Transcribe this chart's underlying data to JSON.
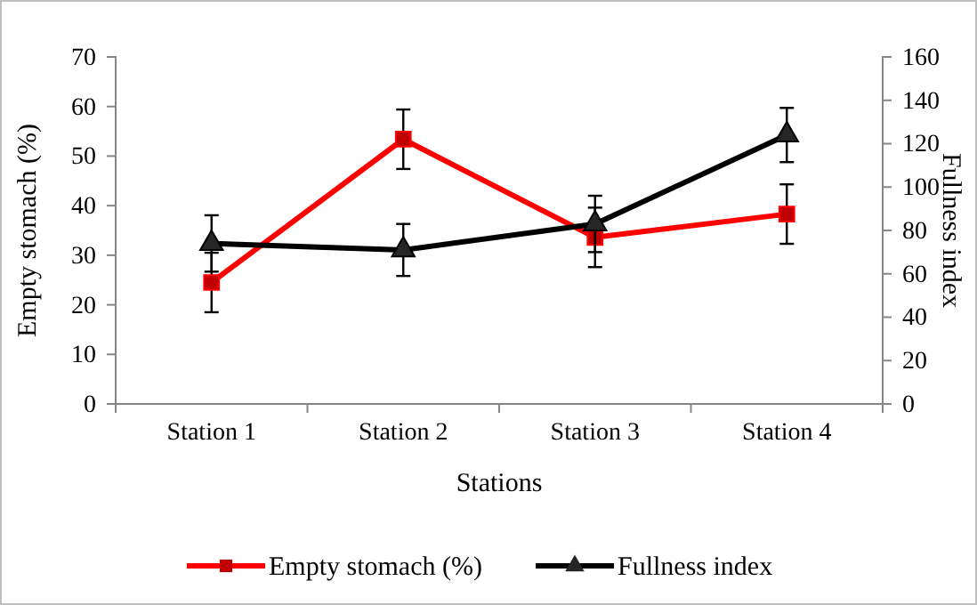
{
  "chart_data": {
    "type": "line",
    "xlabel": "Stations",
    "ylabel": "Empty stomach (%)",
    "y2label": "Fullness index",
    "categories": [
      "Station 1",
      "Station 2",
      "Station 3",
      "Station 4"
    ],
    "series": [
      {
        "name": "Empty stomach (%)",
        "color": "#ff0000",
        "values": [
          24.5,
          53.4,
          33.6,
          38.3
        ],
        "errors": [
          6,
          6,
          6,
          6
        ],
        "marker": "square"
      },
      {
        "name": "Fullness index",
        "color": "#000000",
        "values": [
          74,
          71,
          83,
          124
        ],
        "errors": [
          13,
          12,
          13,
          12.5
        ],
        "axis": "y2",
        "marker": "triangle"
      }
    ],
    "ylim": [
      0,
      70
    ],
    "yticks": [
      0,
      10,
      20,
      30,
      40,
      50,
      60,
      70
    ],
    "y2lim": [
      0,
      160
    ],
    "y2ticks": [
      0,
      20,
      40,
      60,
      80,
      100,
      120,
      140,
      160
    ],
    "grid": false,
    "legend": "bottom",
    "line_style": "solid"
  }
}
